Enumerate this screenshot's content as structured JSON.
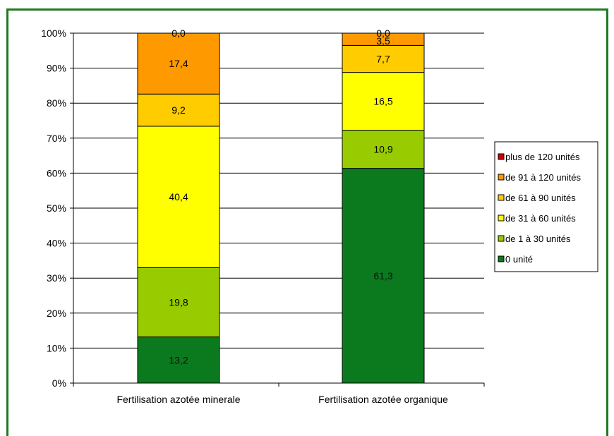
{
  "chart_data": {
    "type": "bar",
    "stacked": "percent",
    "categories": [
      "Fertilisation azotée minerale",
      "Fertilisation azotée organique"
    ],
    "y_tick_labels": [
      "0%",
      "10%",
      "20%",
      "30%",
      "40%",
      "50%",
      "60%",
      "70%",
      "80%",
      "90%",
      "100%"
    ],
    "ylim": [
      0,
      100
    ],
    "grid": true,
    "legend_position": "right",
    "series": [
      {
        "name": "0 unité",
        "color": "#0b7a1e",
        "values": [
          13.2,
          61.3
        ],
        "labels": [
          "13,2",
          "61,3"
        ]
      },
      {
        "name": "de 1 à 30 unités",
        "color": "#99cc00",
        "values": [
          19.8,
          10.9
        ],
        "labels": [
          "19,8",
          "10,9"
        ]
      },
      {
        "name": "de 31 à 60 unités",
        "color": "#ffff00",
        "values": [
          40.4,
          16.5
        ],
        "labels": [
          "40,4",
          "16,5"
        ]
      },
      {
        "name": "de 61 à 90 unités",
        "color": "#ffcc00",
        "values": [
          9.2,
          7.7
        ],
        "labels": [
          "9,2",
          "7,7"
        ]
      },
      {
        "name": "de 91 à 120 unités",
        "color": "#ff9900",
        "values": [
          17.4,
          3.5
        ],
        "labels": [
          "17,4",
          "3,5"
        ]
      },
      {
        "name": "plus de 120 unités",
        "color": "#cc0000",
        "values": [
          0.0,
          0.0
        ],
        "labels": [
          "0,0",
          "0,0"
        ]
      }
    ]
  }
}
